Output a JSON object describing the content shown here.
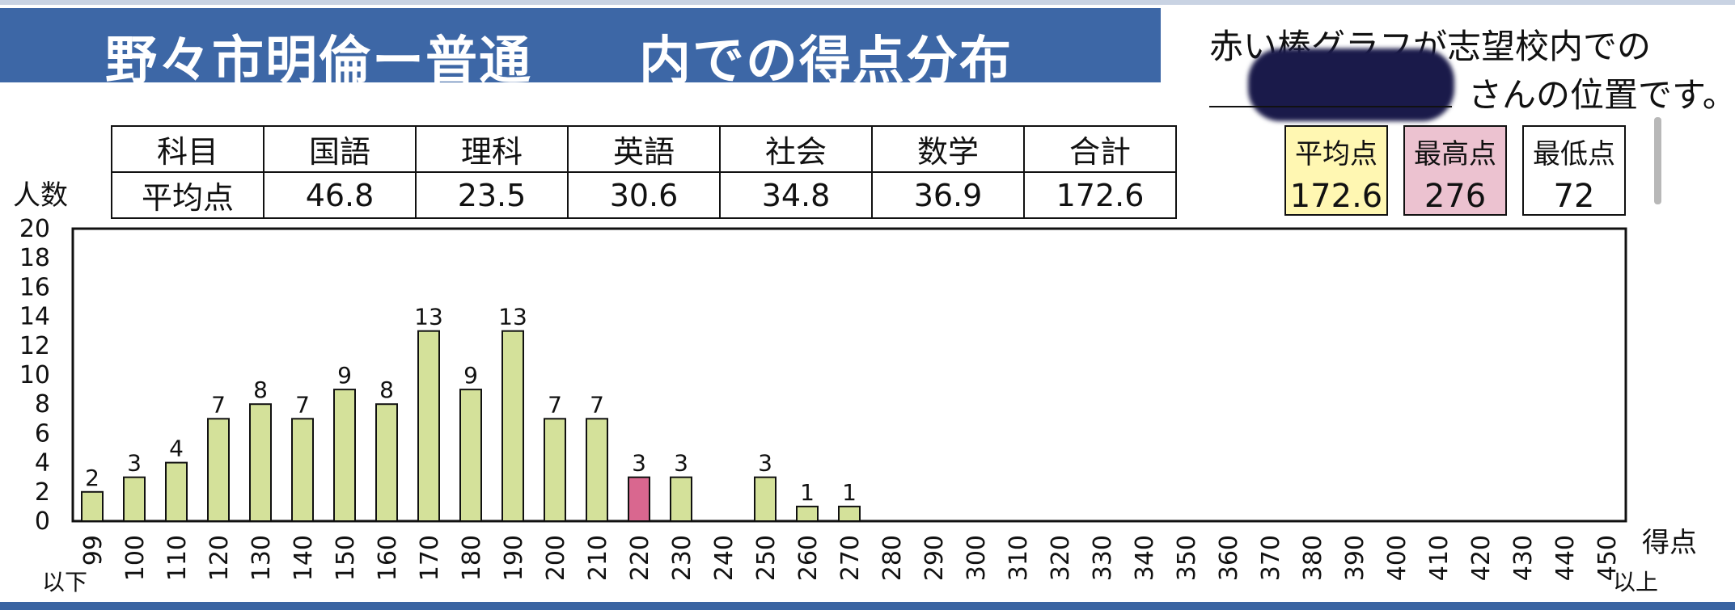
{
  "title": "野々市明倫ー普通　　内での得点分布",
  "note": {
    "line1": "赤い棒グラフが志望校内での",
    "line2": "さんの位置です。"
  },
  "score_table": {
    "header_label": "科目",
    "row_label": "平均点",
    "subjects": [
      "国語",
      "理科",
      "英語",
      "社会",
      "数学",
      "合計"
    ],
    "averages": [
      "46.8",
      "23.5",
      "30.6",
      "34.8",
      "36.9",
      "172.6"
    ]
  },
  "stats": {
    "avg_label": "平均点",
    "avg_value": "172.6",
    "max_label": "最高点",
    "max_value": "276",
    "min_label": "最低点",
    "min_value": "72"
  },
  "chart_data": {
    "type": "bar",
    "title": "野々市明倫ー普通　　内での得点分布",
    "xlabel": "得点",
    "ylabel": "人数",
    "x_suffix_first": "以下",
    "x_suffix_last": "以上",
    "ylim": [
      0,
      20
    ],
    "yticks": [
      0,
      2,
      4,
      6,
      8,
      10,
      12,
      14,
      16,
      18,
      20
    ],
    "categories": [
      "99",
      "100",
      "110",
      "120",
      "130",
      "140",
      "150",
      "160",
      "170",
      "180",
      "190",
      "200",
      "210",
      "220",
      "230",
      "240",
      "250",
      "260",
      "270",
      "280",
      "290",
      "300",
      "310",
      "320",
      "330",
      "340",
      "350",
      "360",
      "370",
      "380",
      "390",
      "400",
      "410",
      "420",
      "430",
      "440",
      "450"
    ],
    "values": [
      2,
      3,
      4,
      7,
      8,
      7,
      9,
      8,
      13,
      9,
      13,
      7,
      7,
      3,
      3,
      0,
      3,
      1,
      1,
      0,
      0,
      0,
      0,
      0,
      0,
      0,
      0,
      0,
      0,
      0,
      0,
      0,
      0,
      0,
      0,
      0,
      0
    ],
    "highlight_category": "220",
    "colors": {
      "bar": "#d4e19a",
      "highlight": "#d9678f",
      "outline": "#111111"
    },
    "grid": false
  }
}
